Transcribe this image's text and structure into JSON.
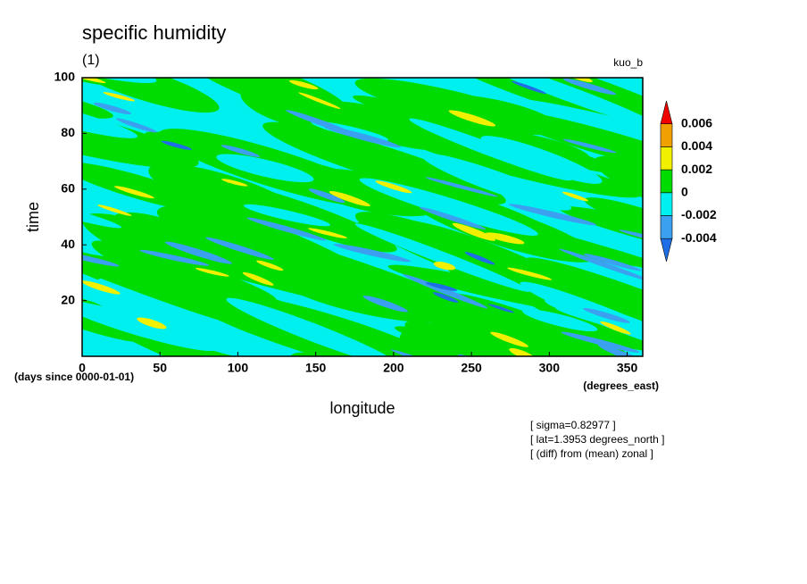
{
  "chart_data": {
    "type": "contour",
    "title": "specific humidity",
    "subtitle": "(1)",
    "case_label": "kuo_b",
    "xlabel": "longitude",
    "ylabel": "time",
    "x_units": "(degrees_east)",
    "y_units": "(days since 0000-01-01)",
    "xlim": [
      0,
      360
    ],
    "xticks": [
      0,
      50,
      100,
      150,
      200,
      250,
      300,
      350
    ],
    "ylim": [
      0,
      100
    ],
    "yticks": [
      20,
      40,
      60,
      80,
      100
    ],
    "levels": [
      -0.004,
      -0.002,
      0,
      0.002,
      0.004,
      0.006
    ],
    "colors": [
      "#1e6ee6",
      "#3ca0f0",
      "#00f0f0",
      "#00dc00",
      "#f0f000",
      "#f0a000",
      "#f00000"
    ],
    "annotations": [
      "[ sigma=0.82977 ]",
      "[ lat=1.3953 degrees_north ]",
      "[ (diff) from (mean) zonal ]"
    ]
  }
}
